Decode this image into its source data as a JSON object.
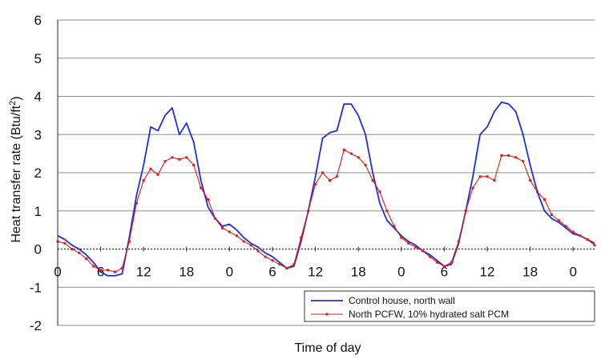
{
  "chart_data": {
    "type": "line",
    "title": "",
    "xlabel": "Time of day",
    "ylabel_main": "Heat transfer rate (Btu/ft",
    "ylabel_sup": "2",
    "ylabel_close": ")",
    "ylim": [
      -2,
      6
    ],
    "yticks": [
      "6",
      "5",
      "4",
      "3",
      "2",
      "1",
      "0",
      "-1",
      "-2"
    ],
    "ytick_values": [
      6,
      5,
      4,
      3,
      2,
      1,
      0,
      -1,
      -2
    ],
    "xlim_hours": [
      0,
      75
    ],
    "xtick_hours": [
      0,
      6,
      12,
      18,
      24,
      30,
      36,
      42,
      48,
      54,
      60,
      66,
      72
    ],
    "xticks": [
      "0",
      "6",
      "12",
      "18",
      "0",
      "6",
      "12",
      "18",
      "0",
      "6",
      "12",
      "18",
      "0"
    ],
    "grid": "horizontal",
    "legend_position": "bottom-right",
    "series": [
      {
        "name": "Control house, north wall",
        "color": "#1f2fd6",
        "marker": "none",
        "x": [
          0,
          1,
          2,
          3,
          4,
          5,
          6,
          7,
          8,
          9,
          10,
          11,
          12,
          13,
          14,
          15,
          16,
          17,
          18,
          19,
          20,
          21,
          22,
          23,
          24,
          25,
          26,
          27,
          28,
          29,
          30,
          31,
          32,
          33,
          34,
          35,
          36,
          37,
          38,
          39,
          40,
          41,
          42,
          43,
          44,
          45,
          46,
          47,
          48,
          49,
          50,
          51,
          52,
          53,
          54,
          55,
          56,
          57,
          58,
          59,
          60,
          61,
          62,
          63,
          64,
          65,
          66,
          67,
          68,
          69,
          70,
          71,
          72,
          73,
          74,
          75
        ],
        "y": [
          0.35,
          0.25,
          0.1,
          0.0,
          -0.15,
          -0.35,
          -0.6,
          -0.7,
          -0.7,
          -0.65,
          0.3,
          1.4,
          2.2,
          3.2,
          3.1,
          3.5,
          3.7,
          3.0,
          3.3,
          2.8,
          1.8,
          1.1,
          0.8,
          0.6,
          0.65,
          0.5,
          0.3,
          0.15,
          0.05,
          -0.1,
          -0.2,
          -0.35,
          -0.5,
          -0.45,
          0.2,
          1.0,
          1.9,
          2.9,
          3.05,
          3.1,
          3.8,
          3.8,
          3.5,
          3.0,
          2.0,
          1.2,
          0.75,
          0.55,
          0.35,
          0.2,
          0.1,
          -0.05,
          -0.15,
          -0.3,
          -0.45,
          -0.4,
          0.15,
          1.0,
          1.9,
          3.0,
          3.2,
          3.6,
          3.85,
          3.8,
          3.6,
          3.0,
          2.2,
          1.5,
          1.0,
          0.8,
          0.7,
          0.55,
          0.4,
          0.35,
          0.25,
          0.15
        ]
      },
      {
        "name": "North PCFW, 10% hydrated salt PCM",
        "color": "#e01818",
        "marker": "square",
        "x": [
          0,
          1,
          2,
          3,
          4,
          5,
          6,
          7,
          8,
          9,
          10,
          11,
          12,
          13,
          14,
          15,
          16,
          17,
          18,
          19,
          20,
          21,
          22,
          23,
          24,
          25,
          26,
          27,
          28,
          29,
          30,
          31,
          32,
          33,
          34,
          35,
          36,
          37,
          38,
          39,
          40,
          41,
          42,
          43,
          44,
          45,
          46,
          47,
          48,
          49,
          50,
          51,
          52,
          53,
          54,
          55,
          56,
          57,
          58,
          59,
          60,
          61,
          62,
          63,
          64,
          65,
          66,
          67,
          68,
          69,
          70,
          71,
          72,
          73,
          74,
          75
        ],
        "y": [
          0.2,
          0.15,
          0.0,
          -0.1,
          -0.25,
          -0.45,
          -0.55,
          -0.55,
          -0.6,
          -0.5,
          0.2,
          1.2,
          1.8,
          2.1,
          1.95,
          2.3,
          2.4,
          2.35,
          2.4,
          2.2,
          1.6,
          1.3,
          0.8,
          0.55,
          0.45,
          0.35,
          0.2,
          0.1,
          -0.05,
          -0.2,
          -0.3,
          -0.4,
          -0.5,
          -0.4,
          0.3,
          1.0,
          1.7,
          2.0,
          1.8,
          1.9,
          2.6,
          2.5,
          2.4,
          2.2,
          1.8,
          1.5,
          1.0,
          0.6,
          0.3,
          0.15,
          0.05,
          -0.05,
          -0.2,
          -0.35,
          -0.45,
          -0.35,
          0.2,
          1.0,
          1.6,
          1.9,
          1.9,
          1.8,
          2.45,
          2.45,
          2.4,
          2.3,
          1.8,
          1.5,
          1.3,
          0.9,
          0.75,
          0.6,
          0.45,
          0.35,
          0.25,
          0.1
        ]
      }
    ]
  }
}
